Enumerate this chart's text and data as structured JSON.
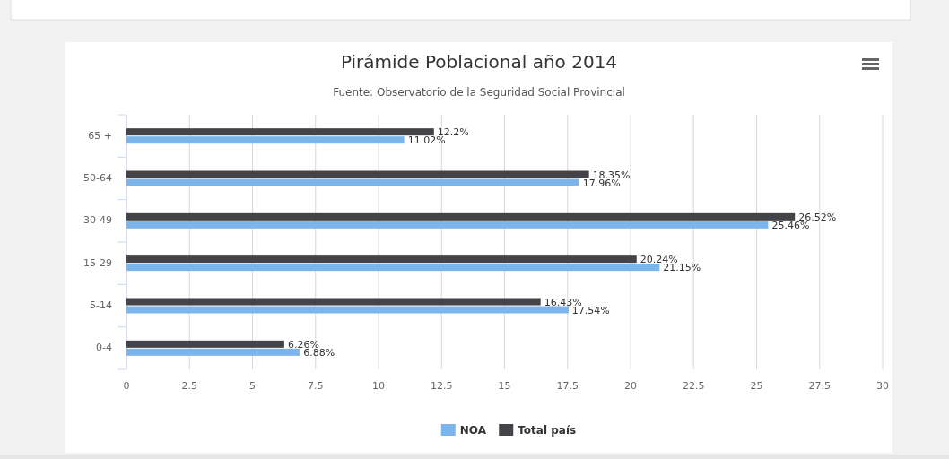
{
  "chart_data": {
    "type": "bar",
    "orientation": "horizontal",
    "title": "Pirámide Poblacional año 2014",
    "subtitle": "Fuente: Observatorio de la Seguridad Social Provincial",
    "categories": [
      "65 +",
      "50-64",
      "30-49",
      "15-29",
      "5-14",
      "0-4"
    ],
    "series": [
      {
        "name": "NOA",
        "color": "#7cb5ec",
        "values": [
          11.02,
          17.96,
          25.46,
          21.15,
          17.54,
          6.88
        ],
        "value_labels": [
          "11.02%",
          "17.96%",
          "25.46%",
          "21.15%",
          "17.54%",
          "6.88%"
        ]
      },
      {
        "name": "Total país",
        "color": "#434348",
        "values": [
          12.2,
          18.35,
          26.52,
          20.24,
          16.43,
          6.26
        ],
        "value_labels": [
          "12.2%",
          "18.35%",
          "26.52%",
          "20.24%",
          "16.43%",
          "6.26%"
        ]
      }
    ],
    "xlim": [
      0,
      30
    ],
    "xticks": [
      0,
      2.5,
      5,
      7.5,
      10,
      12.5,
      15,
      17.5,
      20,
      22.5,
      25,
      27.5,
      30
    ],
    "grid": "x",
    "legend": "bottom"
  }
}
